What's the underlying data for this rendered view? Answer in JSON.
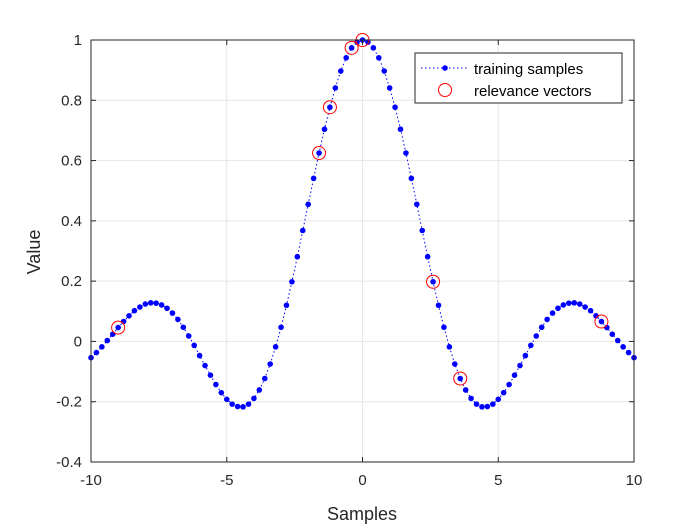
{
  "chart_data": {
    "type": "scatter",
    "title": "",
    "xlabel": "Samples",
    "ylabel": "Value",
    "xlim": [
      -10,
      10
    ],
    "ylim": [
      -0.4,
      1
    ],
    "xticks": [
      -10,
      -5,
      0,
      5,
      10
    ],
    "yticks": [
      -0.4,
      -0.2,
      0,
      0.2,
      0.4,
      0.6,
      0.8,
      1
    ],
    "xtick_labels": [
      "-10",
      "-5",
      "0",
      "5",
      "10"
    ],
    "ytick_labels": [
      "-0.4",
      "-0.2",
      "0",
      "0.2",
      "0.4",
      "0.6",
      "0.8",
      "1"
    ],
    "grid": true,
    "legend_position": "top-right",
    "series": [
      {
        "name": "training samples",
        "style": "dotted line with dot markers",
        "color": "#0000ff",
        "x_start": -10,
        "x_end": 10,
        "x_step": 0.2,
        "function": "sin(x)/x",
        "x": [
          -10,
          -9.8,
          -9.6,
          -9.4,
          -9.2,
          -9,
          -8.8,
          -8.6,
          -8.4,
          -8.2,
          -8,
          -7.8,
          -7.6,
          -7.4,
          -7.2,
          -7,
          -6.8,
          -6.6,
          -6.4,
          -6.2,
          -6,
          -5.8,
          -5.6,
          -5.4,
          -5.2,
          -5,
          -4.8,
          -4.6,
          -4.4,
          -4.2,
          -4,
          -3.8,
          -3.6,
          -3.4,
          -3.2,
          -3,
          -2.8,
          -2.6,
          -2.4,
          -2.2,
          -2,
          -1.8,
          -1.6,
          -1.4,
          -1.2,
          -1,
          -0.8,
          -0.6,
          -0.4,
          -0.2,
          0,
          0.2,
          0.4,
          0.6,
          0.8,
          1,
          1.2,
          1.4,
          1.6,
          1.8,
          2,
          2.2,
          2.4,
          2.6,
          2.8,
          3,
          3.2,
          3.4,
          3.6,
          3.8,
          4,
          4.2,
          4.4,
          4.6,
          4.8,
          5,
          5.2,
          5.4,
          5.6,
          5.8,
          6,
          6.2,
          6.4,
          6.6,
          6.8,
          7,
          7.2,
          7.4,
          7.6,
          7.8,
          8,
          8.2,
          8.4,
          8.6,
          8.8,
          9,
          9.2,
          9.4,
          9.6,
          9.8,
          10
        ],
        "y": [
          -0.054,
          -0.037,
          -0.018,
          0.003,
          0.024,
          0.046,
          0.066,
          0.085,
          0.102,
          0.114,
          0.124,
          0.128,
          0.127,
          0.121,
          0.11,
          0.094,
          0.073,
          0.047,
          0.018,
          -0.013,
          -0.047,
          -0.08,
          -0.112,
          -0.143,
          -0.17,
          -0.192,
          -0.208,
          -0.216,
          -0.217,
          -0.208,
          -0.189,
          -0.161,
          -0.123,
          -0.075,
          -0.018,
          0.047,
          0.12,
          0.198,
          0.281,
          0.368,
          0.455,
          0.541,
          0.625,
          0.704,
          0.777,
          0.841,
          0.897,
          0.941,
          0.974,
          0.993,
          1.0,
          0.993,
          0.974,
          0.941,
          0.897,
          0.841,
          0.777,
          0.704,
          0.625,
          0.541,
          0.455,
          0.368,
          0.281,
          0.198,
          0.12,
          0.047,
          -0.018,
          -0.075,
          -0.123,
          -0.161,
          -0.189,
          -0.208,
          -0.217,
          -0.216,
          -0.208,
          -0.192,
          -0.17,
          -0.143,
          -0.112,
          -0.08,
          -0.047,
          -0.013,
          0.018,
          0.047,
          0.073,
          0.094,
          0.11,
          0.121,
          0.127,
          0.128,
          0.124,
          0.114,
          0.102,
          0.085,
          0.066,
          0.046,
          0.024,
          0.003,
          -0.018,
          -0.037,
          -0.054
        ]
      },
      {
        "name": "relevance vectors",
        "style": "open circles",
        "color": "#ff0000",
        "x": [
          -9.0,
          -1.6,
          -1.2,
          -0.4,
          0.0,
          2.6,
          3.6,
          8.8
        ],
        "y": [
          0.046,
          0.625,
          0.777,
          0.974,
          1.0,
          0.198,
          -0.123,
          0.066
        ]
      }
    ]
  }
}
